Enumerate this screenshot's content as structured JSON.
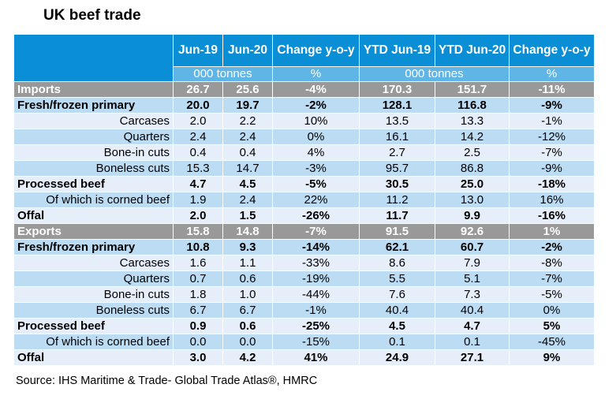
{
  "title": "UK beef trade",
  "header": {
    "label_col": "",
    "columns": [
      "Jun-19",
      "Jun-20",
      "Change y-o-y",
      "YTD Jun-19",
      "YTD Jun-20",
      "Change y-o-y"
    ],
    "units": [
      "000 tonnes",
      "%",
      "000 tonnes",
      "%"
    ]
  },
  "rows": [
    {
      "type": "section",
      "label": "Imports",
      "values": [
        "26.7",
        "25.6",
        "-4%",
        "170.3",
        "151.7",
        "-11%"
      ]
    },
    {
      "type": "bold",
      "label": "Fresh/frozen primary",
      "values": [
        "20.0",
        "19.7",
        "-2%",
        "128.1",
        "116.8",
        "-9%"
      ]
    },
    {
      "type": "sub",
      "label": "Carcases",
      "values": [
        "2.0",
        "2.2",
        "10%",
        "13.5",
        "13.3",
        "-1%"
      ]
    },
    {
      "type": "sub",
      "label": "Quarters",
      "values": [
        "2.4",
        "2.4",
        "0%",
        "16.1",
        "14.2",
        "-12%"
      ]
    },
    {
      "type": "sub",
      "label": "Bone-in cuts",
      "values": [
        "0.4",
        "0.4",
        "4%",
        "2.7",
        "2.5",
        "-7%"
      ]
    },
    {
      "type": "sub",
      "label": "Boneless cuts",
      "values": [
        "15.3",
        "14.7",
        "-3%",
        "95.7",
        "86.8",
        "-9%"
      ]
    },
    {
      "type": "bold",
      "label": "Processed beef",
      "values": [
        "4.7",
        "4.5",
        "-5%",
        "30.5",
        "25.0",
        "-18%"
      ]
    },
    {
      "type": "sub",
      "label": "Of which is corned beef",
      "values": [
        "1.9",
        "2.4",
        "22%",
        "11.2",
        "13.0",
        "16%"
      ]
    },
    {
      "type": "bold",
      "label": "Offal",
      "values": [
        "2.0",
        "1.5",
        "-26%",
        "11.7",
        "9.9",
        "-16%"
      ]
    },
    {
      "type": "section",
      "label": "Exports",
      "values": [
        "15.8",
        "14.8",
        "-7%",
        "91.5",
        "92.6",
        "1%"
      ]
    },
    {
      "type": "bold",
      "label": "Fresh/frozen primary",
      "values": [
        "10.8",
        "9.3",
        "-14%",
        "62.1",
        "60.7",
        "-2%"
      ]
    },
    {
      "type": "sub",
      "label": "Carcases",
      "values": [
        "1.6",
        "1.1",
        "-33%",
        "8.6",
        "7.9",
        "-8%"
      ]
    },
    {
      "type": "sub",
      "label": "Quarters",
      "values": [
        "0.7",
        "0.6",
        "-19%",
        "5.5",
        "5.1",
        "-7%"
      ]
    },
    {
      "type": "sub",
      "label": "Bone-in cuts",
      "values": [
        "1.8",
        "1.0",
        "-44%",
        "7.6",
        "7.3",
        "-5%"
      ]
    },
    {
      "type": "sub",
      "label": "Boneless cuts",
      "values": [
        "6.7",
        "6.7",
        "-1%",
        "40.4",
        "40.4",
        "0%"
      ]
    },
    {
      "type": "bold",
      "label": "Processed beef",
      "values": [
        "0.9",
        "0.6",
        "-25%",
        "4.5",
        "4.7",
        "5%"
      ]
    },
    {
      "type": "sub",
      "label": "Of which is corned beef",
      "values": [
        "0.0",
        "0.0",
        "-15%",
        "0.1",
        "0.1",
        "-45%"
      ]
    },
    {
      "type": "bold",
      "label": "Offal",
      "values": [
        "3.0",
        "4.2",
        "41%",
        "24.9",
        "27.1",
        "9%"
      ]
    }
  ],
  "source": "Source: IHS Maritime & Trade- Global Trade Atlas®, HMRC",
  "colors": {
    "header_bg": "#0a8ed6",
    "units_bg": "#5fb6e6",
    "section_bg": "#999999",
    "row_alt_bg": "#bcdcf4",
    "row_plain_bg": "#e6eef9"
  }
}
